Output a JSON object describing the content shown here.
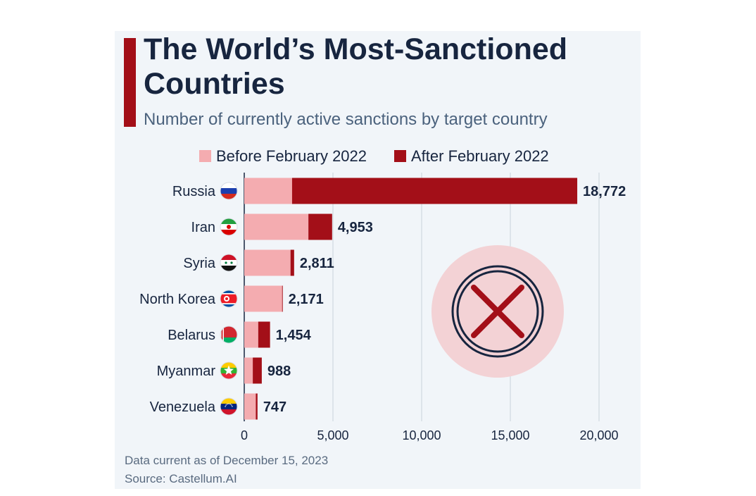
{
  "header": {
    "title": "The World’s Most-Sanctioned Countries",
    "subtitle": "Number of currently active sanctions by target country"
  },
  "legend": [
    {
      "label": "Before February 2022",
      "color": "#f4acb0"
    },
    {
      "label": "After February 2022",
      "color": "#a30f18"
    }
  ],
  "chart_data": {
    "type": "bar",
    "orientation": "horizontal",
    "stacked": true,
    "categories": [
      "Russia",
      "Iran",
      "Syria",
      "North Korea",
      "Belarus",
      "Myanmar",
      "Venezuela"
    ],
    "series": [
      {
        "name": "Before February 2022",
        "color": "#f4acb0",
        "values": [
          2695,
          3616,
          2608,
          2133,
          788,
          481,
          651
        ]
      },
      {
        "name": "After February 2022",
        "color": "#a30f18",
        "values": [
          16077,
          1337,
          203,
          38,
          666,
          507,
          96
        ]
      }
    ],
    "totals": [
      "18,772",
      "4,953",
      "2,811",
      "2,171",
      "1,454",
      "988",
      "747"
    ],
    "x_ticks": [
      "0",
      "5,000",
      "10,000",
      "15,000",
      "20,000"
    ],
    "xlim": [
      0,
      20000
    ],
    "grid": "vertical",
    "legend_position": "top",
    "flags": [
      "russia-flag-icon",
      "iran-flag-icon",
      "syria-flag-icon",
      "north-korea-flag-icon",
      "belarus-flag-icon",
      "myanmar-flag-icon",
      "venezuela-flag-icon"
    ]
  },
  "illustration": {
    "icon": "sanctions-x-icon",
    "colors": [
      "#f3d2d5",
      "#17253f",
      "#a30f18"
    ]
  },
  "footer": {
    "note": "Data current as of December 15, 2023",
    "source": "Source: Castellum.AI"
  }
}
